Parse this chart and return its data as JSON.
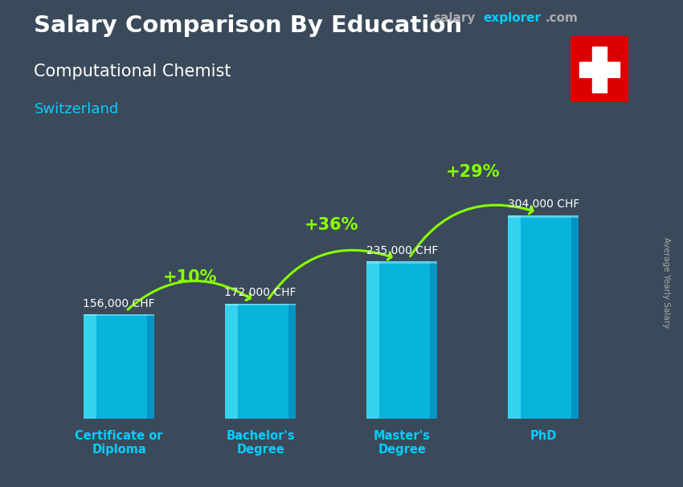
{
  "title": "Salary Comparison By Education",
  "title_bold": "Salary Comparison By Education",
  "subtitle_job": "Computational Chemist",
  "subtitle_country": "Switzerland",
  "categories": [
    "Certificate or\nDiploma",
    "Bachelor's\nDegree",
    "Master's\nDegree",
    "PhD"
  ],
  "values": [
    156000,
    172000,
    235000,
    304000
  ],
  "value_labels": [
    "156,000 CHF",
    "172,000 CHF",
    "235,000 CHF",
    "304,000 CHF"
  ],
  "pct_changes": [
    "+10%",
    "+36%",
    "+29%"
  ],
  "bar_color": "#00c8f0",
  "bar_color_light": "#55e8ff",
  "bar_color_dark": "#0088bb",
  "arrow_color": "#88ff00",
  "pct_color": "#88ff00",
  "title_color": "#ffffff",
  "subtitle_job_color": "#ffffff",
  "subtitle_country_color": "#00cfff",
  "value_label_color": "#ffffff",
  "xlabel_color": "#00cfff",
  "brand_salary_color": "#aaaaaa",
  "brand_explorer_color": "#00cfff",
  "brand_com_color": "#aaaaaa",
  "ylabel": "Average Yearly Salary",
  "ylabel_color": "#aaaaaa",
  "bg_color": "#3a4a5a",
  "ylim": [
    0,
    400000
  ],
  "flag_color": "#dd0000",
  "cross_color": "#ffffff",
  "bar_width": 0.5,
  "bar_positions": [
    0,
    1,
    2,
    3
  ]
}
